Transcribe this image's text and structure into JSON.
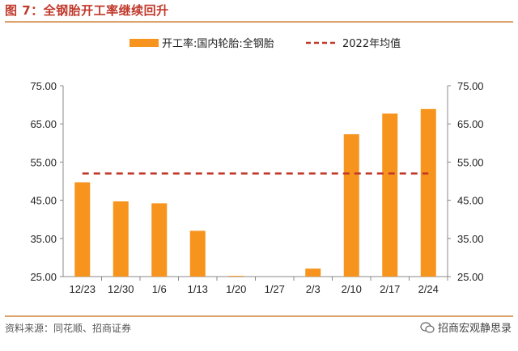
{
  "figure": {
    "title": "图 7：全钢胎开工率继续回升",
    "source": "资料来源：同花顺、招商证券",
    "watermark": "招商宏观静思录"
  },
  "chart_data": {
    "type": "bar",
    "categories": [
      "12/23",
      "12/30",
      "1/6",
      "1/13",
      "1/20",
      "1/27",
      "2/3",
      "2/10",
      "2/17",
      "2/24"
    ],
    "series": [
      {
        "name": "开工率:国内轮胎:全钢胎",
        "type": "bar",
        "color": "#f7941d",
        "values": [
          49.7,
          44.7,
          44.2,
          37.0,
          25.2,
          25.0,
          27.1,
          62.3,
          67.7,
          68.9
        ]
      },
      {
        "name": "2022年均值",
        "type": "line",
        "style": "dashed",
        "color": "#c0392b",
        "values": [
          52.0,
          52.0,
          52.0,
          52.0,
          52.0,
          52.0,
          52.0,
          52.0,
          52.0,
          52.0
        ]
      }
    ],
    "ylim": [
      25,
      75
    ],
    "yticks": [
      "25.00",
      "35.00",
      "45.00",
      "55.00",
      "65.00",
      "75.00"
    ],
    "y2ticks": [
      "25.00",
      "35.00",
      "45.00",
      "55.00",
      "65.00",
      "75.00"
    ],
    "legend": "top",
    "grid": false
  }
}
